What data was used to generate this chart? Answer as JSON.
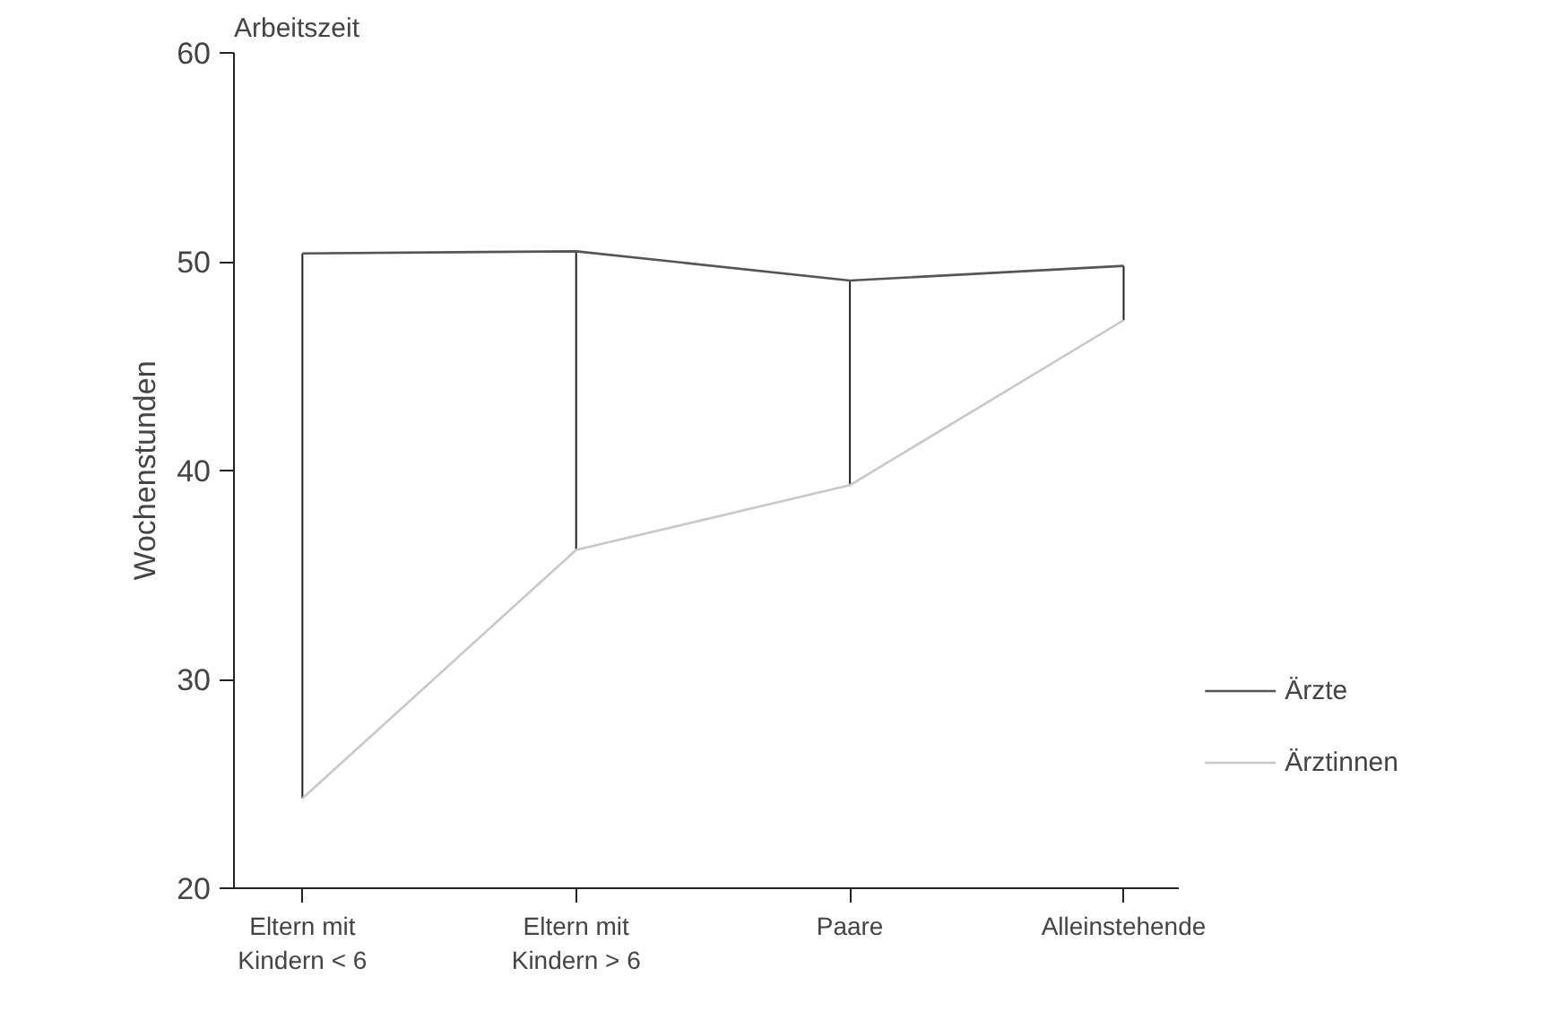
{
  "chart_data": {
    "type": "line",
    "title": "Arbeitszeit",
    "ylabel": "Wochenstunden",
    "categories": [
      "Eltern mit\nKindern < 6",
      "Eltern mit\nKindern > 6",
      "Paare",
      "Alleinstehende"
    ],
    "series": [
      {
        "name": "Ärzte",
        "color": "#555555",
        "values": [
          50.4,
          50.5,
          49.1,
          49.8
        ],
        "errors": [
          [
            24.3,
            50.4
          ],
          [
            36.2,
            50.5
          ],
          [
            39.3,
            49.1
          ],
          [
            47.2,
            49.8
          ]
        ]
      },
      {
        "name": "Ärztinnen",
        "color": "#c8c8c8",
        "values": [
          24.3,
          36.2,
          39.3,
          47.2
        ]
      }
    ],
    "ylim": [
      20,
      60
    ],
    "yticks": [
      20,
      30,
      40,
      50,
      60
    ],
    "grid": false,
    "legend": "right",
    "marker": "none"
  }
}
